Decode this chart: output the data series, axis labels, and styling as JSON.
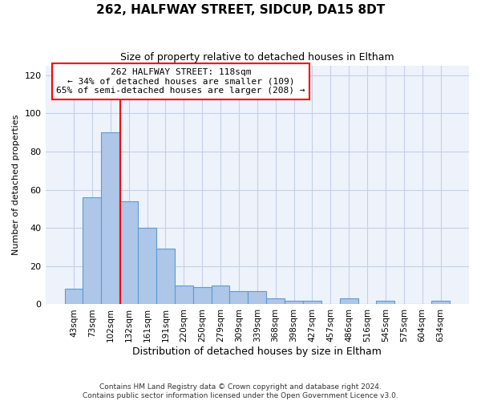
{
  "title": "262, HALFWAY STREET, SIDCUP, DA15 8DT",
  "subtitle": "Size of property relative to detached houses in Eltham",
  "xlabel": "Distribution of detached houses by size in Eltham",
  "ylabel": "Number of detached properties",
  "bar_labels": [
    "43sqm",
    "73sqm",
    "102sqm",
    "132sqm",
    "161sqm",
    "191sqm",
    "220sqm",
    "250sqm",
    "279sqm",
    "309sqm",
    "339sqm",
    "368sqm",
    "398sqm",
    "427sqm",
    "457sqm",
    "486sqm",
    "516sqm",
    "545sqm",
    "575sqm",
    "604sqm",
    "634sqm"
  ],
  "bar_values": [
    8,
    56,
    90,
    54,
    40,
    29,
    10,
    9,
    10,
    7,
    7,
    3,
    2,
    2,
    0,
    3,
    0,
    2,
    0,
    0,
    2
  ],
  "bar_color": "#aec6e8",
  "bar_edge_color": "#5b9bd5",
  "ylim": [
    0,
    125
  ],
  "yticks": [
    0,
    20,
    40,
    60,
    80,
    100,
    120
  ],
  "property_label": "262 HALFWAY STREET: 118sqm",
  "annotation_line1": "← 34% of detached houses are smaller (109)",
  "annotation_line2": "65% of semi-detached houses are larger (208) →",
  "red_line_x": 2.55,
  "footer_line1": "Contains HM Land Registry data © Crown copyright and database right 2024.",
  "footer_line2": "Contains public sector information licensed under the Open Government Licence v3.0.",
  "bg_color": "#eef2fb",
  "grid_color": "#c5cfe8"
}
